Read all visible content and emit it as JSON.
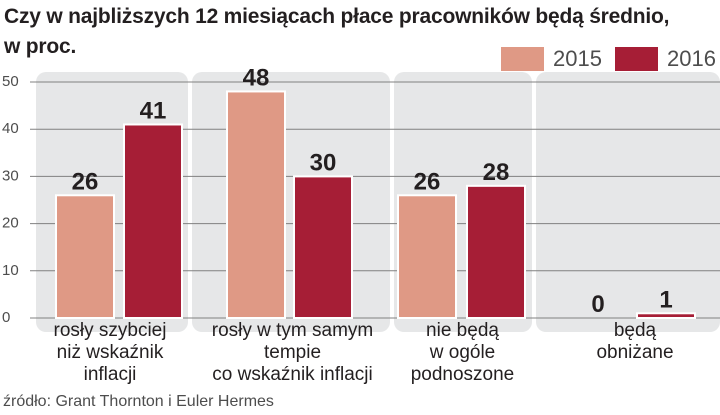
{
  "chart_data": {
    "type": "bar",
    "title": "Czy w najbliższych 12 miesiącach płace pracowników będą średnio,\nw proc.",
    "categories": [
      "rosły szybciej\nniż wskaźnik\ninflacji",
      "rosły w tym samym\ntempie\nco wskaźnik inflacji",
      "nie będą\nw ogóle\npodnoszone",
      "będą\nobniżane"
    ],
    "series": [
      {
        "name": "2015",
        "color": "#df9985",
        "values": [
          26,
          48,
          26,
          0
        ]
      },
      {
        "name": "2016",
        "color": "#a61e36",
        "values": [
          41,
          30,
          28,
          1
        ]
      }
    ],
    "ylim": [
      0,
      50
    ],
    "yticks": [
      0,
      10,
      20,
      30,
      40,
      50
    ],
    "grid": true,
    "legend_position": "top-right",
    "source": "źródło: Grant Thornton i Euler Hermes"
  }
}
